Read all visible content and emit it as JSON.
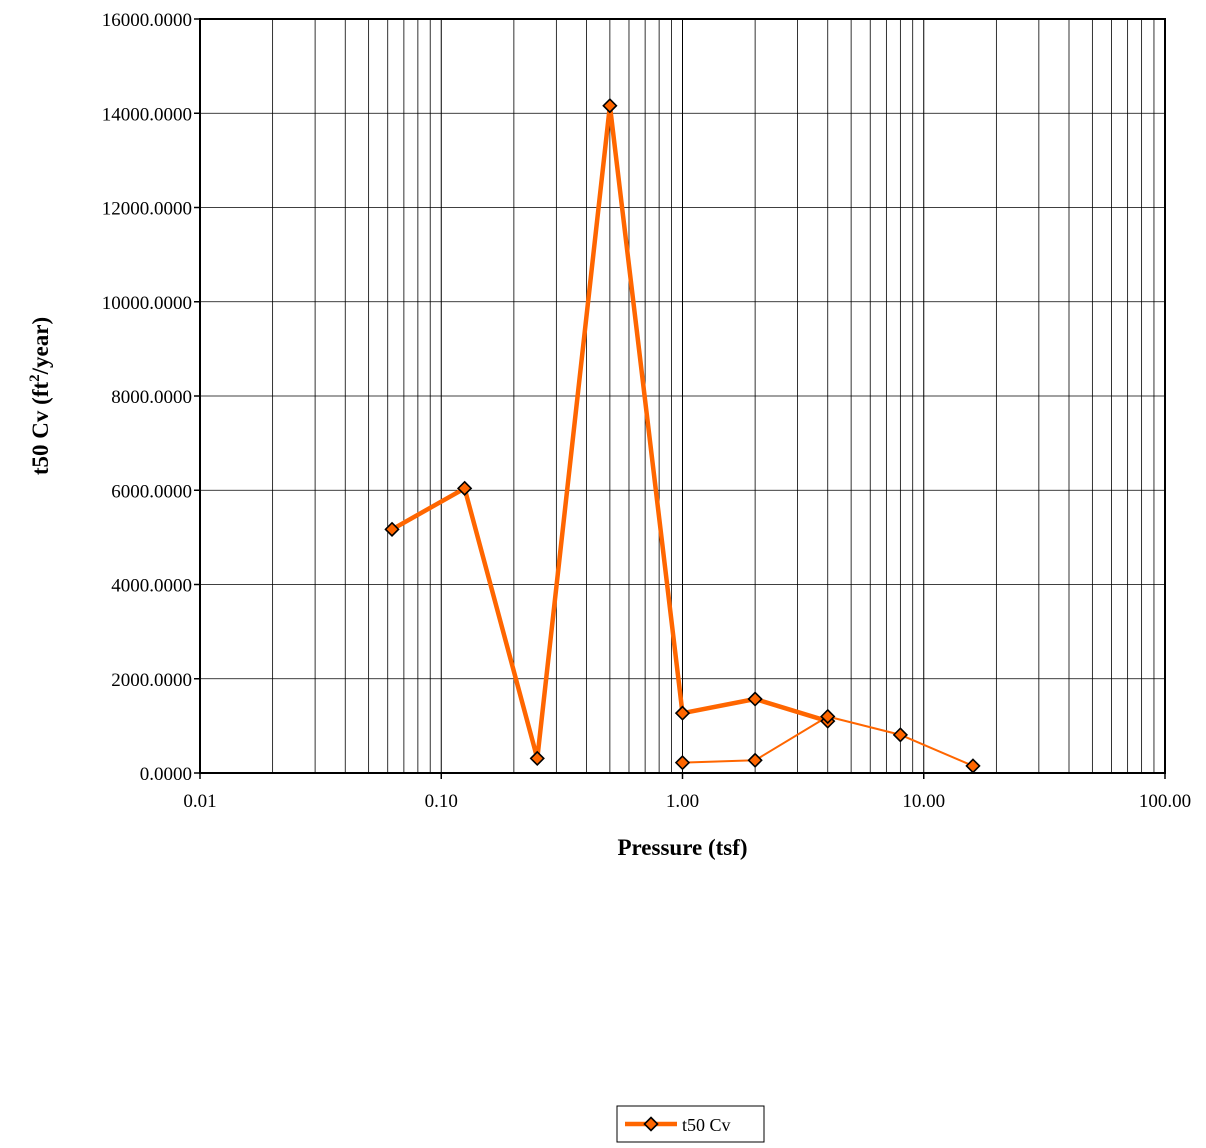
{
  "chart_data": {
    "type": "line",
    "xlabel": "Pressure (tsf)",
    "ylabel_main": "t50 Cv (ft",
    "ylabel_sup": "2",
    "ylabel_tail": "/year)",
    "x_scale": "log",
    "xlim": [
      0.01,
      100
    ],
    "ylim": [
      0,
      16000
    ],
    "grid": true,
    "legend_position": "bottom-center",
    "x_ticks": [
      {
        "value": 0.01,
        "label": "0.01"
      },
      {
        "value": 0.1,
        "label": "0.10"
      },
      {
        "value": 1,
        "label": "1.00"
      },
      {
        "value": 10,
        "label": "10.00"
      },
      {
        "value": 100,
        "label": "100.00"
      }
    ],
    "y_ticks": [
      {
        "value": 0,
        "label": "0.0000"
      },
      {
        "value": 2000,
        "label": "2000.0000"
      },
      {
        "value": 4000,
        "label": "4000.0000"
      },
      {
        "value": 6000,
        "label": "6000.0000"
      },
      {
        "value": 8000,
        "label": "8000.0000"
      },
      {
        "value": 10000,
        "label": "10000.0000"
      },
      {
        "value": 12000,
        "label": "12000.0000"
      },
      {
        "value": 14000,
        "label": "14000.0000"
      },
      {
        "value": 16000,
        "label": "16000.0000"
      }
    ],
    "series": [
      {
        "name": "t50 Cv",
        "color": "#FF6600",
        "marker_fill": "#FF6600",
        "marker_stroke": "#000000",
        "segments": [
          {
            "width": "thick",
            "points": [
              {
                "x": 0.0625,
                "y": 5170
              },
              {
                "x": 0.125,
                "y": 6040
              },
              {
                "x": 0.25,
                "y": 310
              },
              {
                "x": 0.5,
                "y": 14160
              },
              {
                "x": 1,
                "y": 1270
              },
              {
                "x": 2,
                "y": 1570
              },
              {
                "x": 4,
                "y": 1100
              }
            ]
          },
          {
            "width": "thin",
            "points": [
              {
                "x": 1,
                "y": 220
              },
              {
                "x": 2,
                "y": 270
              },
              {
                "x": 4,
                "y": 1200
              },
              {
                "x": 8,
                "y": 810
              },
              {
                "x": 16,
                "y": 150
              }
            ]
          }
        ]
      }
    ]
  }
}
